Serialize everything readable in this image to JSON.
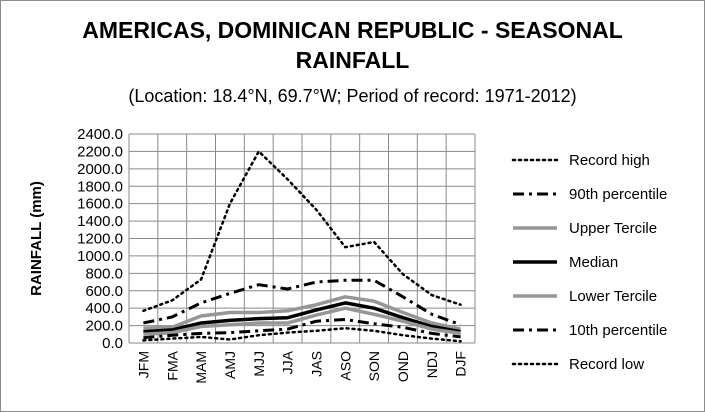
{
  "chart_data": {
    "type": "line",
    "title_line1": "AMERICAS, DOMINICAN REPUBLIC - SEASONAL",
    "title_line2": "RAINFALL",
    "subtitle": "(Location: 18.4°N, 69.7°W; Period of record: 1971-2012)",
    "ylabel": "RAINFALL (mm)",
    "xlabel": "",
    "ylim": [
      0,
      2400
    ],
    "ytick_step": 200,
    "ytick_labels": [
      "0.0",
      "200.0",
      "400.0",
      "600.0",
      "800.0",
      "1000.0",
      "1200.0",
      "1400.0",
      "1600.0",
      "1800.0",
      "2000.0",
      "2200.0",
      "2400.0"
    ],
    "categories": [
      "JFM",
      "FMA",
      "MAM",
      "AMJ",
      "MJJ",
      "JJA",
      "JAS",
      "ASO",
      "SON",
      "OND",
      "NDJ",
      "DJF"
    ],
    "legend_position": "right",
    "grid": true,
    "series": [
      {
        "name": "Record high",
        "color": "#000000",
        "dash": "dot",
        "values": [
          370,
          490,
          730,
          1600,
          2200,
          1880,
          1530,
          1100,
          1160,
          790,
          550,
          440
        ]
      },
      {
        "name": "90th percentile",
        "color": "#000000",
        "dash": "dashdot",
        "values": [
          230,
          300,
          460,
          570,
          670,
          620,
          700,
          720,
          720,
          530,
          330,
          210
        ]
      },
      {
        "name": "Upper Tercile",
        "color": "#969696",
        "dash": "solid",
        "values": [
          170,
          180,
          310,
          350,
          350,
          370,
          440,
          530,
          480,
          350,
          230,
          160
        ]
      },
      {
        "name": "Median",
        "color": "#000000",
        "dash": "solid",
        "values": [
          130,
          150,
          230,
          260,
          280,
          290,
          380,
          460,
          400,
          290,
          190,
          130
        ]
      },
      {
        "name": "Lower Tercile",
        "color": "#969696",
        "dash": "solid",
        "values": [
          100,
          120,
          190,
          210,
          230,
          230,
          320,
          400,
          330,
          250,
          160,
          110
        ]
      },
      {
        "name": "10th percentile",
        "color": "#000000",
        "dash": "dashdot",
        "values": [
          60,
          90,
          110,
          120,
          140,
          160,
          250,
          270,
          220,
          180,
          110,
          70
        ]
      },
      {
        "name": "Record low",
        "color": "#000000",
        "dash": "dot",
        "values": [
          30,
          50,
          70,
          40,
          90,
          120,
          140,
          170,
          140,
          90,
          50,
          20
        ]
      }
    ]
  }
}
